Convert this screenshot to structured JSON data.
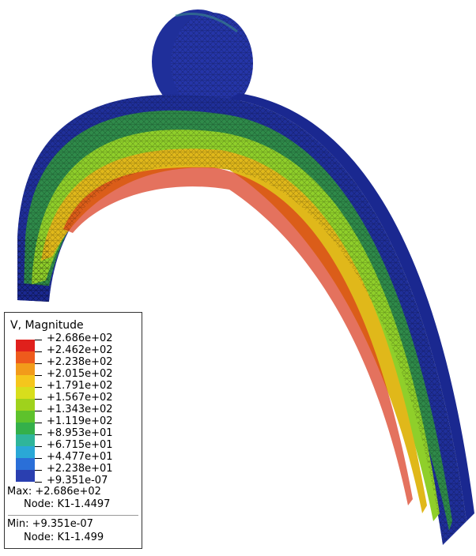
{
  "legend": {
    "title": "V, Magnitude",
    "labels": [
      "+2.686e+02",
      "+2.462e+02",
      "+2.238e+02",
      "+2.015e+02",
      "+1.791e+02",
      "+1.567e+02",
      "+1.343e+02",
      "+1.119e+02",
      "+8.953e+01",
      "+6.715e+01",
      "+4.477e+01",
      "+2.238e+01",
      "+9.351e-07"
    ],
    "colors": [
      "#e0201c",
      "#ee5a1c",
      "#f29b1a",
      "#f5c61c",
      "#d8de1c",
      "#9fd21c",
      "#5ec22c",
      "#34b04a",
      "#2fb59a",
      "#2aa8d6",
      "#2a6fd8",
      "#2a3fb0"
    ],
    "max_label": "Max: +2.686e+02",
    "max_node": "Node: K1-1.4497",
    "min_label": "Min: +9.351e-07",
    "min_node": "Node: K1-1.499"
  },
  "model": {
    "field_colors": {
      "low": "#1f2f9a",
      "mid_low": "#2f8a4a",
      "mid": "#8fcf2a",
      "mid_high": "#e0b81a",
      "high": "#d8361a"
    }
  }
}
